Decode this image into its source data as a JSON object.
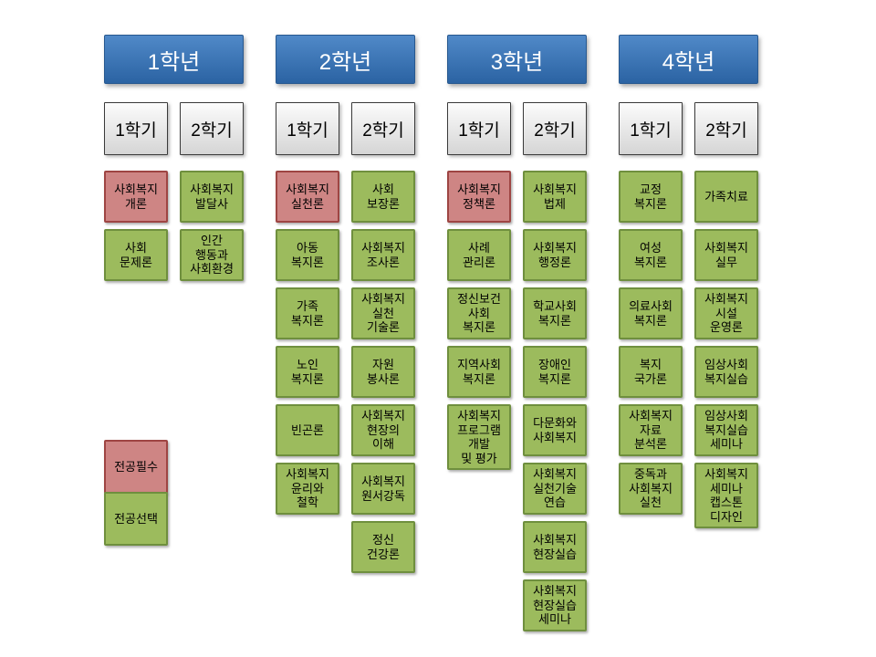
{
  "colors": {
    "year_header_blue": "#3b74b5",
    "required_fill": "#ce8584",
    "required_border": "#9e4543",
    "elective_fill": "#9cbb5d",
    "elective_border": "#6f8f3e",
    "semester_fill": "#e4e4e4",
    "semester_border": "#3a3a3a"
  },
  "legend": {
    "items": [
      {
        "label": "전공필수",
        "type": "required"
      },
      {
        "label": "전공선택",
        "type": "elective"
      }
    ]
  },
  "years": [
    {
      "label": "1학년",
      "semesters": [
        {
          "label": "1학기",
          "courses": [
            {
              "name": "사회복지\n개론",
              "type": "required"
            },
            {
              "name": "사회\n문제론",
              "type": "elective"
            }
          ]
        },
        {
          "label": "2학기",
          "courses": [
            {
              "name": "사회복지\n발달사",
              "type": "elective"
            },
            {
              "name": "인간\n행동과\n사회환경",
              "type": "elective"
            }
          ]
        }
      ]
    },
    {
      "label": "2학년",
      "semesters": [
        {
          "label": "1학기",
          "courses": [
            {
              "name": "사회복지\n실천론",
              "type": "required"
            },
            {
              "name": "아동\n복지론",
              "type": "elective"
            },
            {
              "name": "가족\n복지론",
              "type": "elective"
            },
            {
              "name": "노인\n복지론",
              "type": "elective"
            },
            {
              "name": "빈곤론",
              "type": "elective"
            },
            {
              "name": "사회복지\n윤리와\n철학",
              "type": "elective"
            }
          ]
        },
        {
          "label": "2학기",
          "courses": [
            {
              "name": "사회\n보장론",
              "type": "elective"
            },
            {
              "name": "사회복지\n조사론",
              "type": "elective"
            },
            {
              "name": "사회복지\n실천\n기술론",
              "type": "elective"
            },
            {
              "name": "자원\n봉사론",
              "type": "elective"
            },
            {
              "name": "사회복지\n현장의\n이해",
              "type": "elective"
            },
            {
              "name": "사회복지\n원서강독",
              "type": "elective"
            },
            {
              "name": "정신\n건강론",
              "type": "elective"
            }
          ]
        }
      ]
    },
    {
      "label": "3학년",
      "semesters": [
        {
          "label": "1학기",
          "courses": [
            {
              "name": "사회복지\n정책론",
              "type": "required"
            },
            {
              "name": "사례\n관리론",
              "type": "elective"
            },
            {
              "name": "정신보건\n사회\n복지론",
              "type": "elective"
            },
            {
              "name": "지역사회\n복지론",
              "type": "elective"
            },
            {
              "name": "사회복지\n프로그램\n개발\n및 평가",
              "type": "elective"
            }
          ]
        },
        {
          "label": "2학기",
          "courses": [
            {
              "name": "사회복지\n법제",
              "type": "elective"
            },
            {
              "name": "사회복지\n행정론",
              "type": "elective"
            },
            {
              "name": "학교사회\n복지론",
              "type": "elective"
            },
            {
              "name": "장애인\n복지론",
              "type": "elective"
            },
            {
              "name": "다문화와\n사회복지",
              "type": "elective"
            },
            {
              "name": "사회복지\n실천기술\n연습",
              "type": "elective"
            },
            {
              "name": "사회복지\n현장실습",
              "type": "elective"
            },
            {
              "name": "사회복지\n현장실습\n세미나",
              "type": "elective"
            }
          ]
        }
      ]
    },
    {
      "label": "4학년",
      "semesters": [
        {
          "label": "1학기",
          "courses": [
            {
              "name": "교정\n복지론",
              "type": "elective"
            },
            {
              "name": "여성\n복지론",
              "type": "elective"
            },
            {
              "name": "의료사회\n복지론",
              "type": "elective"
            },
            {
              "name": "복지\n국가론",
              "type": "elective"
            },
            {
              "name": "사회복지\n자료\n분석론",
              "type": "elective"
            },
            {
              "name": "중독과\n사회복지\n실천",
              "type": "elective"
            }
          ]
        },
        {
          "label": "2학기",
          "courses": [
            {
              "name": "가족치료",
              "type": "elective"
            },
            {
              "name": "사회복지\n실무",
              "type": "elective"
            },
            {
              "name": "사회복지\n시설\n운영론",
              "type": "elective"
            },
            {
              "name": "임상사회\n복지실습",
              "type": "elective"
            },
            {
              "name": "임상사회\n복지실습\n세미나",
              "type": "elective"
            },
            {
              "name": "사회복지\n세미나\n캡스톤\n디자인",
              "type": "elective"
            }
          ]
        }
      ]
    }
  ]
}
